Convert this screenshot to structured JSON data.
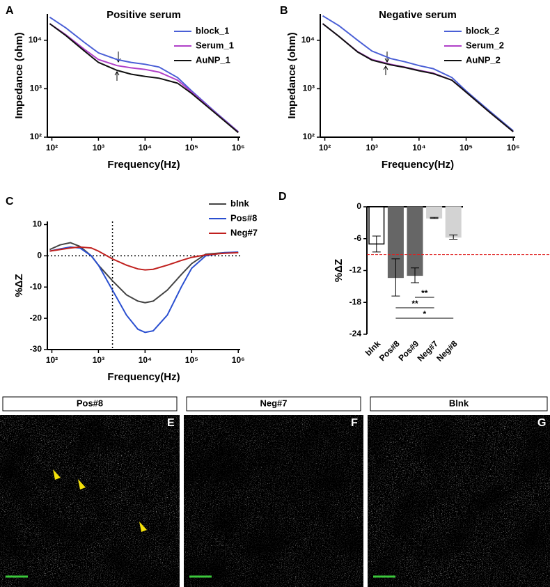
{
  "chart_data": [
    {
      "type": "line",
      "panel": "A",
      "title": "Positive serum",
      "xlabel": "Frequency(Hz)",
      "ylabel": "Impedance (ohm)",
      "xscale": "log",
      "yscale": "log",
      "xlim": [
        80,
        1100000
      ],
      "ylim": [
        100,
        35000
      ],
      "xticks": [
        {
          "value": 100,
          "label": "10²"
        },
        {
          "value": 1000,
          "label": "10³"
        },
        {
          "value": 10000,
          "label": "10⁴"
        },
        {
          "value": 100000,
          "label": "10⁵"
        },
        {
          "value": 1000000,
          "label": "10⁶"
        }
      ],
      "yticks": [
        {
          "value": 100,
          "label": "10²"
        },
        {
          "value": 1000,
          "label": "10³"
        },
        {
          "value": 10000,
          "label": "10⁴"
        }
      ],
      "x": [
        90,
        200,
        500,
        1000,
        2500,
        5000,
        10000,
        20000,
        50000,
        100000,
        300000,
        1000000
      ],
      "series": [
        {
          "name": "block_1",
          "color": "#4a5fd6",
          "values": [
            30000,
            18000,
            9000,
            5500,
            4000,
            3500,
            3200,
            2800,
            1700,
            900,
            350,
            130
          ]
        },
        {
          "name": "Serum_1",
          "color": "#b040c8",
          "values": [
            22000,
            13000,
            6500,
            4000,
            3000,
            2700,
            2500,
            2200,
            1500,
            850,
            340,
            128
          ]
        },
        {
          "name": "AuNP_1",
          "color": "#111111",
          "values": [
            22000,
            12500,
            6000,
            3500,
            2400,
            2000,
            1800,
            1650,
            1300,
            800,
            330,
            125
          ]
        }
      ]
    },
    {
      "type": "line",
      "panel": "B",
      "title": "Negative serum",
      "xlabel": "Frequency(Hz)",
      "ylabel": "Impedance (ohm)",
      "xscale": "log",
      "yscale": "log",
      "xlim": [
        80,
        1100000
      ],
      "ylim": [
        100,
        35000
      ],
      "xticks": [
        {
          "value": 100,
          "label": "10²"
        },
        {
          "value": 1000,
          "label": "10³"
        },
        {
          "value": 10000,
          "label": "10⁴"
        },
        {
          "value": 100000,
          "label": "10⁵"
        },
        {
          "value": 1000000,
          "label": "10⁶"
        }
      ],
      "yticks": [
        {
          "value": 100,
          "label": "10²"
        },
        {
          "value": 1000,
          "label": "10³"
        },
        {
          "value": 10000,
          "label": "10⁴"
        }
      ],
      "x": [
        90,
        200,
        500,
        1000,
        2500,
        5000,
        10000,
        20000,
        50000,
        100000,
        300000,
        1000000
      ],
      "series": [
        {
          "name": "block_2",
          "color": "#4a5fd6",
          "values": [
            32000,
            20000,
            10000,
            6000,
            4200,
            3600,
            3000,
            2600,
            1700,
            900,
            360,
            135
          ]
        },
        {
          "name": "Serum_2",
          "color": "#b040c8",
          "values": [
            22000,
            12000,
            5800,
            4000,
            3200,
            2800,
            2400,
            2100,
            1500,
            850,
            340,
            130
          ]
        },
        {
          "name": "AuNP_2",
          "color": "#111111",
          "values": [
            22000,
            12000,
            5700,
            3900,
            3100,
            2750,
            2350,
            2050,
            1500,
            850,
            340,
            130
          ]
        }
      ]
    },
    {
      "type": "line",
      "panel": "C",
      "xlabel": "Frequency(Hz)",
      "ylabel": "%ΔZ",
      "xscale": "log",
      "xlim": [
        80,
        1100000
      ],
      "ylim": [
        -30,
        11
      ],
      "xticks": [
        {
          "value": 100,
          "label": "10²"
        },
        {
          "value": 1000,
          "label": "10³"
        },
        {
          "value": 10000,
          "label": "10⁴"
        },
        {
          "value": 100000,
          "label": "10⁵"
        },
        {
          "value": 1000000,
          "label": "10⁶"
        }
      ],
      "yticks": [
        10,
        0,
        -10,
        -20,
        -30
      ],
      "vline": 2000,
      "hline": 0,
      "x": [
        90,
        150,
        250,
        400,
        700,
        1000,
        2000,
        4000,
        7000,
        10000,
        15000,
        30000,
        60000,
        100000,
        200000,
        500000,
        1000000
      ],
      "series": [
        {
          "name": "blnk",
          "color": "#444444",
          "values": [
            2,
            3.5,
            4.2,
            3,
            0,
            -3,
            -8,
            -12.5,
            -14.5,
            -15,
            -14.5,
            -11,
            -6,
            -2.5,
            0.5,
            1,
            1
          ]
        },
        {
          "name": "Pos#8",
          "color": "#2a4fd0",
          "values": [
            1.5,
            2.2,
            2.8,
            2.5,
            0,
            -3,
            -11,
            -19,
            -23.5,
            -24.5,
            -24,
            -19,
            -10,
            -4,
            0,
            1,
            1.2
          ]
        },
        {
          "name": "Neg#7",
          "color": "#c0201e",
          "values": [
            1.5,
            2,
            2.5,
            2.8,
            2.5,
            1.5,
            -1,
            -3,
            -4.2,
            -4.5,
            -4.3,
            -3,
            -1.5,
            -0.5,
            0.3,
            0.8,
            1
          ]
        }
      ]
    },
    {
      "type": "bar",
      "panel": "D",
      "ylabel": "%ΔZ",
      "ylim": [
        -24,
        0
      ],
      "yticks": [
        0,
        -6,
        -12,
        -18,
        -24
      ],
      "hline": -9,
      "categories": [
        "blnk",
        "Pos#8",
        "Pos#9",
        "Neg#7",
        "Neg#8"
      ],
      "values": [
        -7,
        -13.3,
        -12.9,
        -2.1,
        -5.7
      ],
      "errors": [
        1.5,
        3.5,
        1.4,
        0.1,
        0.4
      ],
      "colors": [
        "#ffffff",
        "#666666",
        "#666666",
        "#d3d3d3",
        "#d3d3d3"
      ],
      "significance": [
        {
          "from": 2,
          "to": 3,
          "label": "**"
        },
        {
          "from": 1,
          "to": 3,
          "label": "**"
        },
        {
          "from": 1,
          "to": 4,
          "label": "*"
        }
      ]
    }
  ],
  "image_panels": [
    {
      "title": "Pos#8",
      "letter": "E"
    },
    {
      "title": "Neg#7",
      "letter": "F"
    },
    {
      "title": "Blnk",
      "letter": "G"
    }
  ]
}
